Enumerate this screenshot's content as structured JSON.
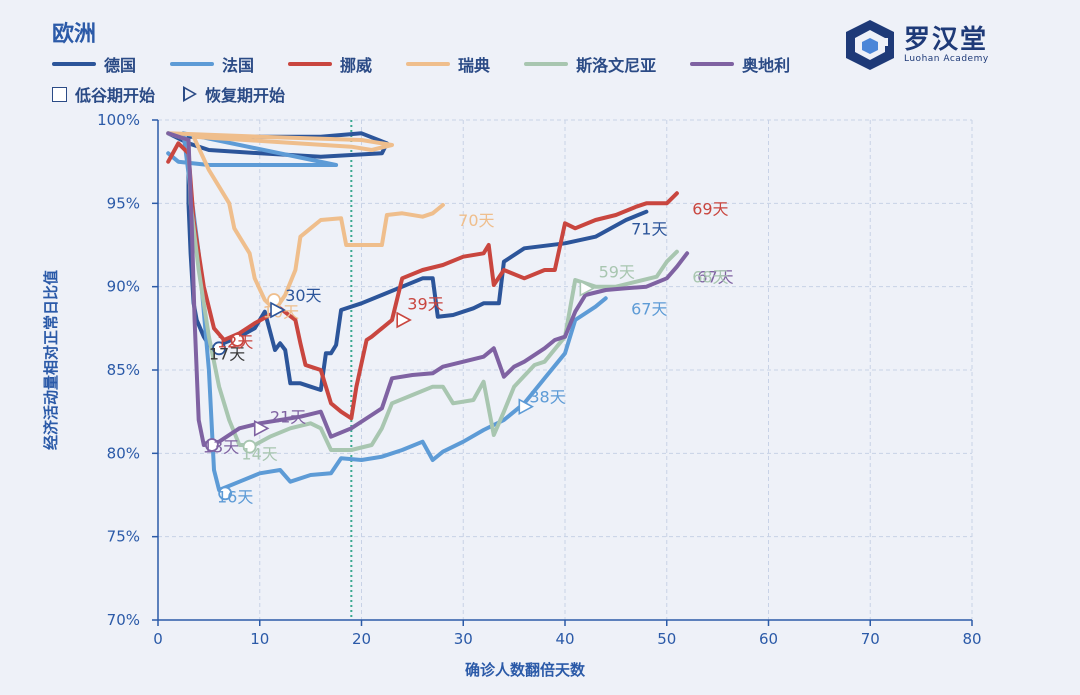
{
  "title": "欧洲",
  "brand": {
    "name_cn": "罗汉堂",
    "name_en": "Luohan Academy",
    "color": "#1e3a78"
  },
  "markers_legend": {
    "trough_start": "低谷期开始",
    "recovery_start": "恢复期开始"
  },
  "chart_data": {
    "type": "line",
    "xlabel": "确诊人数翻倍天数",
    "ylabel": "经济活动量相对正常日比值",
    "xlim": [
      0,
      80
    ],
    "ylim": [
      70,
      100
    ],
    "x_ticks": [
      0,
      10,
      20,
      30,
      40,
      50,
      60,
      70,
      80
    ],
    "y_ticks": [
      70,
      75,
      80,
      85,
      90,
      95,
      100
    ],
    "y_tick_labels": [
      "70%",
      "75%",
      "80%",
      "85%",
      "90%",
      "95%",
      "100%"
    ],
    "grid": true,
    "reference_line_x": 19,
    "series": [
      {
        "name": "德国",
        "color": "#2c559a",
        "points": [
          [
            1,
            99.2
          ],
          [
            3,
            98.6
          ],
          [
            5,
            98.2
          ],
          [
            10,
            98.0
          ],
          [
            16,
            97.8
          ],
          [
            22,
            98.0
          ],
          [
            22.5,
            98.6
          ],
          [
            20,
            99.2
          ],
          [
            16,
            99.0
          ],
          [
            3,
            99.0
          ],
          [
            3,
            95
          ],
          [
            3.2,
            92
          ],
          [
            3.5,
            89
          ],
          [
            3.8,
            88
          ],
          [
            4.5,
            87
          ],
          [
            5,
            86.5
          ],
          [
            5.5,
            86.3
          ],
          [
            6,
            86.5
          ],
          [
            8,
            87
          ],
          [
            9.5,
            87.5
          ],
          [
            10.5,
            88.5
          ],
          [
            11.5,
            86.2
          ],
          [
            12,
            86.6
          ],
          [
            12.5,
            86.2
          ],
          [
            13,
            84.2
          ],
          [
            14,
            84.2
          ],
          [
            15,
            84
          ],
          [
            16,
            83.8
          ],
          [
            16.5,
            86
          ],
          [
            17,
            86
          ],
          [
            17.5,
            86.5
          ],
          [
            18,
            88.6
          ],
          [
            20,
            89
          ],
          [
            22,
            89.5
          ],
          [
            24,
            90
          ],
          [
            26,
            90.5
          ],
          [
            27,
            90.5
          ],
          [
            27.5,
            88.2
          ],
          [
            29,
            88.3
          ],
          [
            31,
            88.7
          ],
          [
            32,
            89
          ],
          [
            33.5,
            89
          ],
          [
            34,
            91.5
          ],
          [
            36,
            92.3
          ],
          [
            40,
            92.6
          ],
          [
            43,
            93
          ],
          [
            46,
            94
          ],
          [
            48,
            94.5
          ]
        ],
        "label": "71天",
        "label_x": 46.5,
        "label_y": 93.5
      },
      {
        "name": "法国",
        "color": "#5d9bd6",
        "points": [
          [
            1,
            98
          ],
          [
            2,
            97.5
          ],
          [
            5,
            97.3
          ],
          [
            10,
            97.3
          ],
          [
            17.5,
            97.3
          ],
          [
            2.5,
            99.2
          ],
          [
            4,
            92
          ],
          [
            5,
            85
          ],
          [
            5.5,
            79
          ],
          [
            6,
            77.8
          ],
          [
            8,
            78.3
          ],
          [
            10,
            78.8
          ],
          [
            12,
            79
          ],
          [
            13,
            78.3
          ],
          [
            15,
            78.7
          ],
          [
            17,
            78.8
          ],
          [
            18,
            79.7
          ],
          [
            20,
            79.6
          ],
          [
            22,
            79.8
          ],
          [
            24,
            80.2
          ],
          [
            26,
            80.7
          ],
          [
            27,
            79.6
          ],
          [
            28,
            80.1
          ],
          [
            30,
            80.7
          ],
          [
            32,
            81.4
          ],
          [
            34,
            82
          ],
          [
            36,
            83
          ],
          [
            38,
            84.5
          ],
          [
            40,
            86
          ],
          [
            41,
            88
          ],
          [
            43,
            88.8
          ],
          [
            44,
            89.3
          ]
        ],
        "label": "67天",
        "label_x": 46.5,
        "label_y": 88.7
      },
      {
        "name": "挪威",
        "color": "#c9463f",
        "points": [
          [
            1,
            97.5
          ],
          [
            2,
            98.6
          ],
          [
            3,
            98
          ],
          [
            3.5,
            94
          ],
          [
            4.5,
            90
          ],
          [
            5.5,
            87.5
          ],
          [
            6.5,
            86.8
          ],
          [
            8,
            87.2
          ],
          [
            9.5,
            87.8
          ],
          [
            11,
            88.3
          ],
          [
            12,
            88.7
          ],
          [
            13.5,
            88
          ],
          [
            14,
            86.6
          ],
          [
            14.5,
            85.3
          ],
          [
            15,
            85.2
          ],
          [
            16,
            85
          ],
          [
            17,
            83
          ],
          [
            18,
            82.5
          ],
          [
            19,
            82.1
          ],
          [
            19.5,
            84
          ],
          [
            20.5,
            86.8
          ],
          [
            21,
            87
          ],
          [
            22,
            87.5
          ],
          [
            23,
            88
          ],
          [
            24,
            90.5
          ],
          [
            26,
            91
          ],
          [
            28,
            91.3
          ],
          [
            30,
            91.8
          ],
          [
            32,
            92
          ],
          [
            32.5,
            92.5
          ],
          [
            33,
            90.1
          ],
          [
            34,
            91
          ],
          [
            36,
            90.5
          ],
          [
            38,
            91
          ],
          [
            39,
            91
          ],
          [
            40,
            93.8
          ],
          [
            41,
            93.5
          ],
          [
            43,
            94
          ],
          [
            45,
            94.3
          ],
          [
            47,
            94.8
          ],
          [
            48,
            95
          ],
          [
            50,
            95
          ],
          [
            51,
            95.6
          ]
        ],
        "label": "69天",
        "label_x": 52.5,
        "label_y": 94.7
      },
      {
        "name": "瑞典",
        "color": "#efbe8c",
        "points": [
          [
            1,
            99.2
          ],
          [
            10,
            99
          ],
          [
            20,
            98.8
          ],
          [
            23,
            98.5
          ],
          [
            21,
            98.2
          ],
          [
            19,
            98.4
          ],
          [
            3.5,
            99
          ],
          [
            5,
            97
          ],
          [
            6,
            96
          ],
          [
            7,
            95
          ],
          [
            7.5,
            93.5
          ],
          [
            8,
            93
          ],
          [
            9,
            92
          ],
          [
            9.5,
            90.5
          ],
          [
            10.5,
            89.2
          ],
          [
            11.5,
            88.6
          ],
          [
            12.5,
            89.5
          ],
          [
            13.5,
            91
          ],
          [
            14,
            93
          ],
          [
            15,
            93.5
          ],
          [
            16,
            94
          ],
          [
            18,
            94.1
          ],
          [
            18.5,
            92.5
          ],
          [
            20,
            92.5
          ],
          [
            21,
            92.5
          ],
          [
            22,
            92.5
          ],
          [
            22.5,
            94.3
          ],
          [
            24,
            94.4
          ],
          [
            26,
            94.2
          ],
          [
            27,
            94.4
          ],
          [
            28,
            94.9
          ]
        ],
        "label": "70天",
        "label_x": 29.5,
        "label_y": 94.0
      },
      {
        "name": "斯洛文尼亚",
        "color": "#a8c6b0",
        "points": [
          [
            1,
            99.2
          ],
          [
            3,
            98.8
          ],
          [
            3.2,
            95
          ],
          [
            4,
            91
          ],
          [
            5,
            87
          ],
          [
            6,
            84
          ],
          [
            7,
            82
          ],
          [
            8,
            80.5
          ],
          [
            9.5,
            80.5
          ],
          [
            11,
            81
          ],
          [
            13,
            81.5
          ],
          [
            15,
            81.8
          ],
          [
            16,
            81.5
          ],
          [
            17,
            80.2
          ],
          [
            19,
            80.2
          ],
          [
            21,
            80.5
          ],
          [
            22,
            81.5
          ],
          [
            23,
            83
          ],
          [
            25,
            83.5
          ],
          [
            27,
            84
          ],
          [
            28,
            84
          ],
          [
            29,
            83
          ],
          [
            31,
            83.2
          ],
          [
            32,
            84.3
          ],
          [
            33,
            81.1
          ],
          [
            34,
            82.5
          ],
          [
            35,
            84
          ],
          [
            37,
            85.3
          ],
          [
            38,
            85.5
          ],
          [
            40,
            87
          ],
          [
            41,
            90.4
          ],
          [
            43,
            90
          ],
          [
            45,
            90
          ],
          [
            47,
            90.3
          ],
          [
            49,
            90.6
          ],
          [
            50,
            91.5
          ],
          [
            51,
            92.1
          ]
        ],
        "label": "59天",
        "label_x": 43.3,
        "label_y": 90.9
      },
      {
        "name": "奥地利",
        "color": "#7f62a2",
        "points": [
          [
            1,
            99.2
          ],
          [
            3,
            98.8
          ],
          [
            3.3,
            94
          ],
          [
            3.6,
            88
          ],
          [
            4,
            82
          ],
          [
            4.5,
            80.5
          ],
          [
            6,
            80.7
          ],
          [
            8,
            81.5
          ],
          [
            10,
            81.8
          ],
          [
            12,
            82
          ],
          [
            14,
            82.2
          ],
          [
            16,
            82.5
          ],
          [
            17,
            81
          ],
          [
            19,
            81.5
          ],
          [
            21,
            82.3
          ],
          [
            22,
            82.7
          ],
          [
            23,
            84.5
          ],
          [
            25,
            84.7
          ],
          [
            27,
            84.8
          ],
          [
            28,
            85.2
          ],
          [
            30,
            85.5
          ],
          [
            32,
            85.8
          ],
          [
            33,
            86.3
          ],
          [
            34,
            84.6
          ],
          [
            35,
            85.2
          ],
          [
            36,
            85.5
          ],
          [
            38,
            86.3
          ],
          [
            39,
            86.8
          ],
          [
            40,
            87
          ],
          [
            41,
            88.5
          ],
          [
            42,
            89.5
          ],
          [
            44,
            89.8
          ],
          [
            46,
            89.9
          ],
          [
            48,
            90
          ],
          [
            50,
            90.5
          ],
          [
            51,
            91.2
          ],
          [
            52,
            92
          ]
        ],
        "label": "67天",
        "label_x": 53.0,
        "label_y": 90.6
      }
    ],
    "annotations": [
      {
        "text": "17天",
        "x": 5.0,
        "y": 86.0,
        "color": "#3a3a3a",
        "marker": "square",
        "mx": 6.0,
        "my": 86.3,
        "series": "德国"
      },
      {
        "text": "13天",
        "x": 4.4,
        "y": 80.4,
        "color": "#7f62a2",
        "marker": "square",
        "mx": 5.3,
        "my": 80.5,
        "series": "奥地利"
      },
      {
        "text": "16天",
        "x": 5.8,
        "y": 77.4,
        "color": "#5d9bd6",
        "marker": "square",
        "mx": 6.6,
        "my": 77.6,
        "series": "法国"
      },
      {
        "text": "14天",
        "x": 8.2,
        "y": 80.0,
        "color": "#a8c6b0",
        "marker": "square",
        "mx": 9.0,
        "my": 80.4,
        "series": "斯洛文尼亚"
      },
      {
        "text": "12天",
        "x": 5.8,
        "y": 86.7,
        "color": "#c9463f",
        "marker": "square",
        "mx": 7.8,
        "my": 86.8,
        "series": "挪威"
      },
      {
        "text": "10天",
        "x": 10.3,
        "y": 88.5,
        "color": "#efbe8c",
        "marker": "square",
        "mx": 11.4,
        "my": 89.2,
        "series": "瑞典"
      },
      {
        "text": "30天",
        "x": 12.5,
        "y": 89.5,
        "color": "#2c559a",
        "marker": "triangle",
        "mx": 11.6,
        "my": 88.6,
        "series": "德国"
      },
      {
        "text": "21天",
        "x": 11.0,
        "y": 82.2,
        "color": "#7f62a2",
        "marker": "triangle",
        "mx": 10.0,
        "my": 81.5,
        "series": "奥地利"
      },
      {
        "text": "39天",
        "x": 24.5,
        "y": 89.0,
        "color": "#c9463f",
        "marker": "triangle",
        "mx": 24.0,
        "my": 88.0,
        "series": "挪威"
      },
      {
        "text": "38天",
        "x": 36.5,
        "y": 83.4,
        "color": "#5d9bd6",
        "marker": "triangle",
        "mx": 36.0,
        "my": 82.8,
        "series": "法国"
      },
      {
        "text": "68天",
        "x": 52.5,
        "y": 90.6,
        "color": "#a8c6b0",
        "marker": "triangle",
        "mx": 42.0,
        "my": 89.9,
        "series": "斯洛文尼亚"
      }
    ]
  }
}
